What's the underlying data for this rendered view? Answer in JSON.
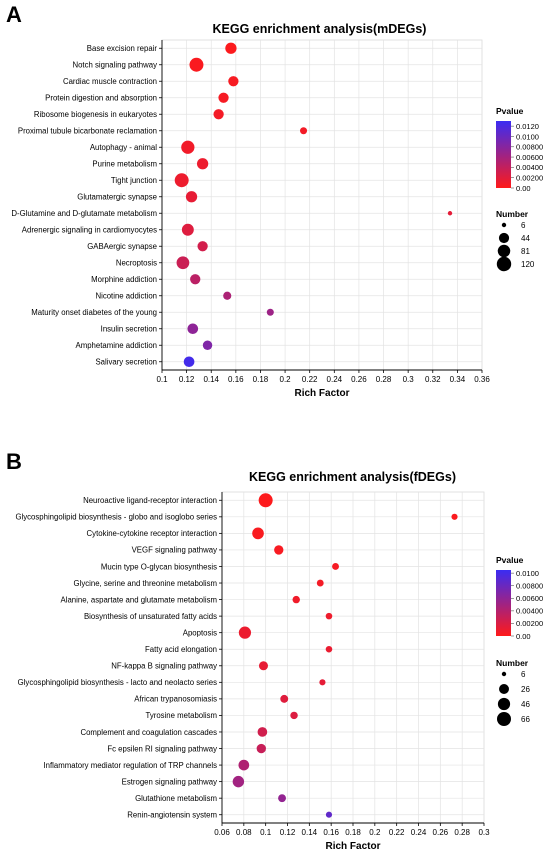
{
  "chart_data": [
    {
      "panel_label": "A",
      "type": "scatter",
      "title": "KEGG enrichment analysis(mDEGs)",
      "xlabel": "Rich Factor",
      "ylabel": "",
      "xlim": [
        0.1,
        0.36
      ],
      "xticks": [
        "0.1",
        "0.12",
        "0.14",
        "0.16",
        "0.18",
        "0.2",
        "0.22",
        "0.24",
        "0.26",
        "0.28",
        "0.3",
        "0.32",
        "0.34",
        "0.36"
      ],
      "grid": true,
      "legend_position": "right",
      "color_legend": {
        "title": "Pvalue",
        "ticks": [
          "0.0120",
          "0.0100",
          "0.00800",
          "0.00600",
          "0.00400",
          "0.00200",
          "0.00"
        ],
        "range": [
          0,
          0.013
        ],
        "low_color": "#ff1a1a",
        "high_color": "#3b2cf2"
      },
      "size_legend": {
        "title": "Number",
        "labels": [
          "6",
          "44",
          "81",
          "120"
        ],
        "values": [
          6,
          44,
          81,
          120
        ]
      },
      "points": [
        {
          "term": "Base excision repair",
          "rich_factor": 0.156,
          "count": 60,
          "pvalue": 0.0002
        },
        {
          "term": "Notch signaling pathway",
          "rich_factor": 0.128,
          "count": 110,
          "pvalue": 0.0003
        },
        {
          "term": "Cardiac muscle contraction",
          "rich_factor": 0.158,
          "count": 45,
          "pvalue": 0.0005
        },
        {
          "term": "Protein digestion and absorption",
          "rich_factor": 0.15,
          "count": 45,
          "pvalue": 0.0006
        },
        {
          "term": "Ribosome biogenesis in eukaryotes",
          "rich_factor": 0.146,
          "count": 45,
          "pvalue": 0.0007
        },
        {
          "term": "Proximal tubule bicarbonate reclamation",
          "rich_factor": 0.215,
          "count": 14,
          "pvalue": 0.0008
        },
        {
          "term": "Autophagy - animal",
          "rich_factor": 0.121,
          "count": 95,
          "pvalue": 0.0009
        },
        {
          "term": "Purine metabolism",
          "rich_factor": 0.133,
          "count": 60,
          "pvalue": 0.0012
        },
        {
          "term": "Tight junction",
          "rich_factor": 0.116,
          "count": 110,
          "pvalue": 0.0012
        },
        {
          "term": "Glutamatergic synapse",
          "rich_factor": 0.124,
          "count": 60,
          "pvalue": 0.0016
        },
        {
          "term": "D-Glutamine and D-glutamate metabolism",
          "rich_factor": 0.334,
          "count": 6,
          "pvalue": 0.0018
        },
        {
          "term": "Adrenergic signaling in cardiomyocytes",
          "rich_factor": 0.121,
          "count": 70,
          "pvalue": 0.0022
        },
        {
          "term": "GABAergic synapse",
          "rich_factor": 0.133,
          "count": 45,
          "pvalue": 0.003
        },
        {
          "term": "Necroptosis",
          "rich_factor": 0.117,
          "count": 85,
          "pvalue": 0.0035
        },
        {
          "term": "Morphine addiction",
          "rich_factor": 0.127,
          "count": 45,
          "pvalue": 0.0045
        },
        {
          "term": "Nicotine addiction",
          "rich_factor": 0.153,
          "count": 22,
          "pvalue": 0.0055
        },
        {
          "term": "Maturity onset diabetes of the young",
          "rich_factor": 0.188,
          "count": 14,
          "pvalue": 0.0065
        },
        {
          "term": "Insulin secretion",
          "rich_factor": 0.125,
          "count": 50,
          "pvalue": 0.0075
        },
        {
          "term": "Amphetamine addiction",
          "rich_factor": 0.137,
          "count": 35,
          "pvalue": 0.0085
        },
        {
          "term": "Salivary secretion",
          "rich_factor": 0.122,
          "count": 50,
          "pvalue": 0.0125
        }
      ]
    },
    {
      "panel_label": "B",
      "type": "scatter",
      "title": "KEGG enrichment analysis(fDEGs)",
      "xlabel": "Rich Factor",
      "ylabel": "",
      "xlim": [
        0.06,
        0.3
      ],
      "xticks": [
        "0.06",
        "0.08",
        "0.1",
        "0.12",
        "0.14",
        "0.16",
        "0.18",
        "0.2",
        "0.22",
        "0.24",
        "0.26",
        "0.28",
        "0.3"
      ],
      "grid": true,
      "legend_position": "right",
      "color_legend": {
        "title": "Pvalue",
        "ticks": [
          "0.0100",
          "0.00800",
          "0.00600",
          "0.00400",
          "0.00200",
          "0.00"
        ],
        "range": [
          0,
          0.0105
        ],
        "low_color": "#ff1a1a",
        "high_color": "#3b2cf2"
      },
      "size_legend": {
        "title": "Number",
        "labels": [
          "6",
          "26",
          "46",
          "66"
        ],
        "values": [
          6,
          26,
          46,
          66
        ]
      },
      "points": [
        {
          "term": "Neuroactive ligand-receptor interaction",
          "rich_factor": 0.1,
          "count": 66,
          "pvalue": 0.0001
        },
        {
          "term": "Glycosphingolipid biosynthesis - globo and isoglobo series",
          "rich_factor": 0.273,
          "count": 8,
          "pvalue": 0.0002
        },
        {
          "term": "Cytokine-cytokine receptor interaction",
          "rich_factor": 0.093,
          "count": 40,
          "pvalue": 0.0003
        },
        {
          "term": "VEGF signaling pathway",
          "rich_factor": 0.112,
          "count": 22,
          "pvalue": 0.0004
        },
        {
          "term": "Mucin type O-glycan biosynthesis",
          "rich_factor": 0.164,
          "count": 10,
          "pvalue": 0.0005
        },
        {
          "term": "Glycine, serine and threonine metabolism",
          "rich_factor": 0.15,
          "count": 10,
          "pvalue": 0.0006
        },
        {
          "term": "Alanine, aspartate and glutamate metabolism",
          "rich_factor": 0.128,
          "count": 12,
          "pvalue": 0.0008
        },
        {
          "term": "Biosynthesis of unsaturated fatty acids",
          "rich_factor": 0.158,
          "count": 9,
          "pvalue": 0.0009
        },
        {
          "term": "Apoptosis",
          "rich_factor": 0.081,
          "count": 46,
          "pvalue": 0.001
        },
        {
          "term": "Fatty acid elongation",
          "rich_factor": 0.158,
          "count": 9,
          "pvalue": 0.0011
        },
        {
          "term": "NF-kappa B signaling pathway",
          "rich_factor": 0.098,
          "count": 20,
          "pvalue": 0.0013
        },
        {
          "term": "Glycosphingolipid biosynthesis - lacto and neolacto series",
          "rich_factor": 0.152,
          "count": 8,
          "pvalue": 0.0014
        },
        {
          "term": "African trypanosomiasis",
          "rich_factor": 0.117,
          "count": 14,
          "pvalue": 0.0017
        },
        {
          "term": "Tyrosine metabolism",
          "rich_factor": 0.126,
          "count": 12,
          "pvalue": 0.0019
        },
        {
          "term": "Complement and coagulation cascades",
          "rich_factor": 0.097,
          "count": 24,
          "pvalue": 0.0025
        },
        {
          "term": "Fc epsilen RI signaling pathway",
          "rich_factor": 0.096,
          "count": 22,
          "pvalue": 0.003
        },
        {
          "term": "Inflammatory mediator regulation of TRP channels",
          "rich_factor": 0.08,
          "count": 32,
          "pvalue": 0.0043
        },
        {
          "term": "Estrogen signaling pathway",
          "rich_factor": 0.075,
          "count": 38,
          "pvalue": 0.005
        },
        {
          "term": "Glutathione metabolism",
          "rich_factor": 0.115,
          "count": 14,
          "pvalue": 0.0058
        },
        {
          "term": "Renin-angiotensin system",
          "rich_factor": 0.158,
          "count": 8,
          "pvalue": 0.0085
        }
      ]
    }
  ]
}
